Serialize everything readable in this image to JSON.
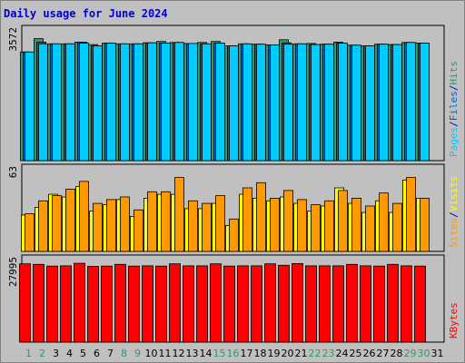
{
  "chart_data": [
    {
      "type": "bar",
      "title": "Daily usage for June 2024",
      "panel": "top",
      "y_tick_label": "3572",
      "ylim": [
        0,
        3800
      ],
      "categories": [
        "1",
        "2",
        "3",
        "4",
        "5",
        "6",
        "7",
        "8",
        "9",
        "10",
        "11",
        "12",
        "13",
        "14",
        "15",
        "16",
        "17",
        "18",
        "19",
        "20",
        "21",
        "22",
        "23",
        "24",
        "25",
        "26",
        "27",
        "28",
        "29",
        "30",
        "31"
      ],
      "weekend_days": [
        "1",
        "2",
        "8",
        "9",
        "15",
        "16",
        "22",
        "23",
        "29",
        "30"
      ],
      "series": [
        {
          "name": "Hits",
          "color": "#339966",
          "values": [
            3180,
            3572,
            3420,
            3420,
            3470,
            3400,
            3440,
            3420,
            3420,
            3450,
            3490,
            3460,
            3430,
            3460,
            3490,
            3360,
            3420,
            3410,
            3390,
            3540,
            3420,
            3430,
            3410,
            3470,
            3380,
            3360,
            3410,
            3400,
            3460,
            3440,
            null
          ]
        },
        {
          "name": "Files",
          "color": "#0066cc",
          "values": [
            3180,
            3470,
            3420,
            3420,
            3470,
            3360,
            3440,
            3420,
            3420,
            3450,
            3440,
            3460,
            3430,
            3420,
            3440,
            3360,
            3420,
            3410,
            3390,
            3450,
            3420,
            3400,
            3410,
            3440,
            3380,
            3360,
            3410,
            3400,
            3460,
            3440,
            null
          ]
        },
        {
          "name": "Pages",
          "color": "#00ccff",
          "values": [
            3180,
            3420,
            3420,
            3420,
            3440,
            3360,
            3440,
            3420,
            3420,
            3450,
            3440,
            3460,
            3430,
            3420,
            3440,
            3360,
            3420,
            3410,
            3390,
            3410,
            3420,
            3400,
            3410,
            3440,
            3380,
            3360,
            3410,
            3400,
            3460,
            3440,
            null
          ]
        }
      ],
      "right_label": [
        "Pages",
        "/",
        "Files",
        "/",
        "Hits"
      ],
      "right_label_colors": [
        "#00ccff",
        "#0000cc",
        "#0066cc",
        "#0000cc",
        "#339966"
      ]
    },
    {
      "type": "bar",
      "panel": "middle",
      "y_tick_label": "63",
      "ylim": [
        0,
        63
      ],
      "series": [
        {
          "name": "Visits",
          "color": "#ffff00",
          "values": [
            28,
            34,
            44,
            42,
            50,
            31,
            36,
            40,
            27,
            41,
            44,
            44,
            33,
            33,
            37,
            20,
            44,
            41,
            39,
            42,
            37,
            31,
            35,
            49,
            37,
            30,
            39,
            30,
            55,
            41,
            null
          ]
        },
        {
          "name": "Sites",
          "color": "#ff9900",
          "values": [
            29,
            39,
            43,
            48,
            54,
            37,
            40,
            42,
            32,
            46,
            46,
            57,
            39,
            37,
            43,
            25,
            49,
            53,
            41,
            47,
            40,
            36,
            39,
            47,
            41,
            35,
            45,
            37,
            57,
            41,
            null
          ]
        }
      ],
      "right_label": [
        "Sites",
        "/",
        "Visits"
      ],
      "right_label_colors": [
        "#ff9900",
        "#0000cc",
        "#ffff00"
      ]
    },
    {
      "type": "bar",
      "panel": "bottom",
      "y_tick_label": "27995",
      "ylim": [
        0,
        29000
      ],
      "series": [
        {
          "name": "KBytes",
          "color": "#ff0000",
          "values": [
            27800,
            27600,
            27000,
            27100,
            27995,
            26900,
            27000,
            27600,
            27000,
            27100,
            27000,
            27800,
            27100,
            27100,
            27800,
            27000,
            27100,
            27100,
            27800,
            27300,
            27900,
            27100,
            27100,
            27100,
            27600,
            27100,
            27000,
            27600,
            27100,
            27000,
            null
          ]
        }
      ],
      "right_label": [
        "KBytes"
      ],
      "right_label_colors": [
        "#ff0000"
      ]
    }
  ]
}
